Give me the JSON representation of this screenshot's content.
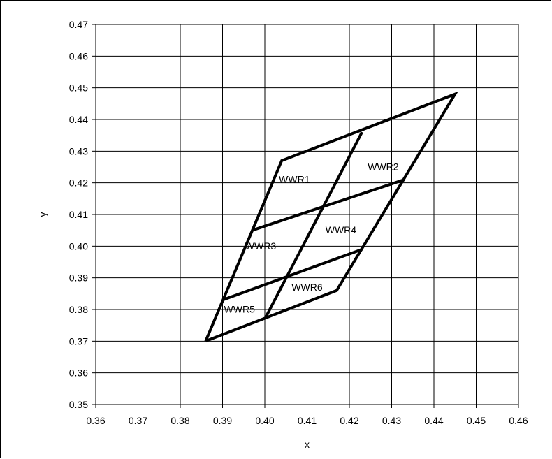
{
  "chart_data": {
    "type": "line",
    "xlabel": "x",
    "ylabel": "y",
    "xlim": [
      0.36,
      0.46
    ],
    "ylim": [
      0.35,
      0.47
    ],
    "x_tick_labels": [
      "0.36",
      "0.37",
      "0.38",
      "0.39",
      "0.40",
      "0.41",
      "0.42",
      "0.43",
      "0.44",
      "0.45",
      "0.46"
    ],
    "y_tick_labels": [
      "0.35",
      "0.36",
      "0.37",
      "0.38",
      "0.39",
      "0.40",
      "0.41",
      "0.42",
      "0.43",
      "0.44",
      "0.45",
      "0.46",
      "0.47"
    ],
    "grid": true,
    "lines": [
      {
        "points": [
          [
            0.386,
            0.37
          ],
          [
            0.404,
            0.427
          ],
          [
            0.445,
            0.448
          ],
          [
            0.417,
            0.386
          ],
          [
            0.386,
            0.37
          ]
        ]
      },
      {
        "points": [
          [
            0.39,
            0.383
          ],
          [
            0.423,
            0.399
          ]
        ]
      },
      {
        "points": [
          [
            0.397,
            0.405
          ],
          [
            0.433,
            0.421
          ]
        ]
      },
      {
        "points": [
          [
            0.4,
            0.377
          ],
          [
            0.423,
            0.436
          ]
        ]
      }
    ],
    "regions": [
      {
        "label": "WWR1",
        "x": 0.407,
        "y": 0.42
      },
      {
        "label": "WWR2",
        "x": 0.428,
        "y": 0.424
      },
      {
        "label": "WWR3",
        "x": 0.399,
        "y": 0.399
      },
      {
        "label": "WWR4",
        "x": 0.418,
        "y": 0.404
      },
      {
        "label": "WWR5",
        "x": 0.394,
        "y": 0.379
      },
      {
        "label": "WWR6",
        "x": 0.41,
        "y": 0.386
      }
    ]
  }
}
